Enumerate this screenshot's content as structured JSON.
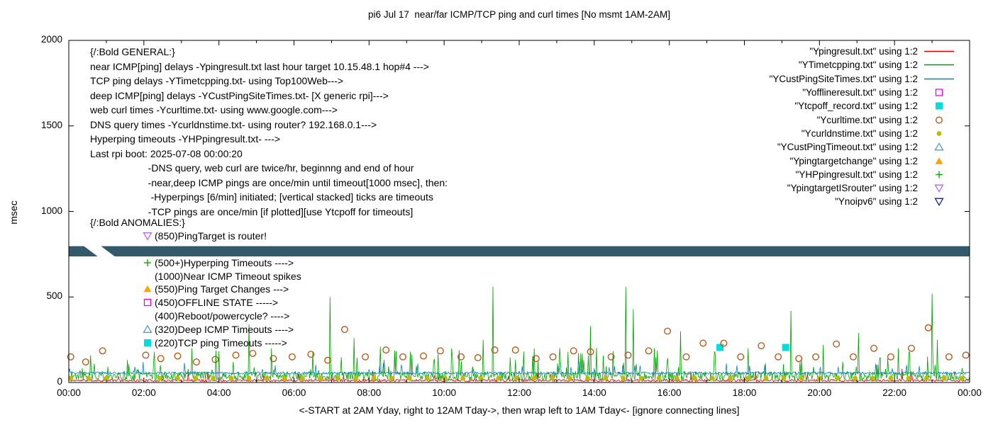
{
  "chart_data": {
    "type": "line",
    "title": "pi6 Jul 17  near/far ICMP/TCP ping and curl times [No msmt 1AM-2AM]",
    "ylabel": "msec",
    "xlabel": "<-START at 2AM Yday, right to 12AM Tday->, then wrap left to 1AM Tday<- [ignore connecting lines]",
    "xlim": [
      0,
      24
    ],
    "ylim": [
      0,
      2000
    ],
    "ytick_values": [
      0,
      500,
      1000,
      1500,
      2000
    ],
    "xtick_hours": [
      0,
      2,
      4,
      6,
      8,
      10,
      12,
      14,
      16,
      18,
      20,
      22,
      24
    ],
    "xtick_labels": [
      "00:00",
      "02:00",
      "04:00",
      "06:00",
      "08:00",
      "10:00",
      "12:00",
      "14:00",
      "16:00",
      "18:00",
      "20:00",
      "22:00",
      "00:00"
    ],
    "no_measurement_gap_hours": [
      1,
      2
    ],
    "band": {
      "color": "#33596b",
      "y_from_msec": 737,
      "y_to_msec": 797
    },
    "series": [
      {
        "name": "Ypingresult",
        "legend_label": "\"Ypingresult.txt\" using 1:2",
        "style": "line",
        "color": "#e00000",
        "base_msec": 12,
        "jitter_msec": 7,
        "burst_prob": 0.02,
        "burst_max": 50,
        "seed": 11,
        "spikes": [
          [
            3.2,
            60
          ],
          [
            8.1,
            70
          ],
          [
            12.5,
            55
          ],
          [
            18.3,
            65
          ],
          [
            22.2,
            80
          ]
        ]
      },
      {
        "name": "YTimetcpping",
        "legend_label": "\"YTimetcpping.txt\" using 1:2",
        "style": "line",
        "color": "#00a000",
        "base_msec": 38,
        "jitter_msec": 26,
        "burst_prob": 0.07,
        "burst_max": 150,
        "seed": 22,
        "spikes": [
          [
            0.6,
            160
          ],
          [
            2.3,
            180
          ],
          [
            3.3,
            200
          ],
          [
            4.8,
            340
          ],
          [
            5.4,
            200
          ],
          [
            6.5,
            180
          ],
          [
            6.97,
            500
          ],
          [
            7.6,
            260
          ],
          [
            8.3,
            210
          ],
          [
            9.1,
            180
          ],
          [
            10.2,
            200
          ],
          [
            11.05,
            250
          ],
          [
            11.3,
            560
          ],
          [
            12.4,
            200
          ],
          [
            13.3,
            180
          ],
          [
            13.9,
            330
          ],
          [
            14.85,
            560
          ],
          [
            15.05,
            430
          ],
          [
            15.6,
            200
          ],
          [
            16.3,
            300
          ],
          [
            17.2,
            180
          ],
          [
            18.1,
            200
          ],
          [
            19.25,
            420
          ],
          [
            20.1,
            220
          ],
          [
            21.05,
            290
          ],
          [
            22.1,
            200
          ],
          [
            23.0,
            520
          ],
          [
            23.15,
            250
          ]
        ]
      },
      {
        "name": "YCustPingSiteTimes",
        "legend_label": "\"YCustPingSiteTimes.txt\" using 1:2",
        "style": "line",
        "color": "#0082c8",
        "base_msec": 55,
        "jitter_msec": 7,
        "burst_prob": 0.03,
        "burst_max": 55,
        "seed": 33,
        "spikes": [
          [
            2.0,
            120
          ],
          [
            5.5,
            100
          ],
          [
            9.3,
            110
          ],
          [
            13.6,
            120
          ],
          [
            17.8,
            100
          ],
          [
            21.5,
            110
          ]
        ]
      },
      {
        "name": "Yofflineresult",
        "legend_label": "\"Yofflineresult.txt\" using 1:2",
        "style": "square-open",
        "color": "#f000f0",
        "points": []
      },
      {
        "name": "Ytcpoff_record",
        "legend_label": "\"Ytcpoff_record.txt\" using 1:2",
        "style": "square-filled",
        "color": "#00dede",
        "points": [
          [
            17.35,
            205
          ],
          [
            19.1,
            205
          ]
        ]
      },
      {
        "name": "Ycurltime",
        "legend_label": "\"Ycurltime.txt\" using 1:2",
        "style": "circle-open",
        "color": "#b8500c",
        "points": [
          [
            0.05,
            150
          ],
          [
            0.45,
            120
          ],
          [
            0.9,
            185
          ],
          [
            2.05,
            160
          ],
          [
            2.45,
            140
          ],
          [
            2.9,
            155
          ],
          [
            3.4,
            120
          ],
          [
            3.9,
            135
          ],
          [
            4.45,
            160
          ],
          [
            4.9,
            170
          ],
          [
            5.45,
            140
          ],
          [
            5.95,
            150
          ],
          [
            6.45,
            165
          ],
          [
            6.9,
            130
          ],
          [
            7.35,
            310
          ],
          [
            7.9,
            150
          ],
          [
            8.45,
            190
          ],
          [
            8.9,
            150
          ],
          [
            9.45,
            155
          ],
          [
            9.9,
            185
          ],
          [
            10.45,
            150
          ],
          [
            10.9,
            145
          ],
          [
            11.35,
            190
          ],
          [
            11.9,
            190
          ],
          [
            12.45,
            140
          ],
          [
            12.9,
            150
          ],
          [
            13.45,
            185
          ],
          [
            13.9,
            180
          ],
          [
            14.45,
            150
          ],
          [
            14.9,
            160
          ],
          [
            15.45,
            185
          ],
          [
            15.95,
            300
          ],
          [
            16.45,
            150
          ],
          [
            16.9,
            230
          ],
          [
            17.45,
            230
          ],
          [
            17.9,
            150
          ],
          [
            18.45,
            215
          ],
          [
            18.9,
            150
          ],
          [
            19.45,
            140
          ],
          [
            19.9,
            150
          ],
          [
            20.45,
            225
          ],
          [
            20.9,
            150
          ],
          [
            21.45,
            200
          ],
          [
            21.9,
            150
          ],
          [
            22.45,
            200
          ],
          [
            22.9,
            320
          ],
          [
            23.45,
            150
          ],
          [
            23.9,
            160
          ]
        ]
      },
      {
        "name": "Ycurldnstime",
        "legend_label": "\"Ycurldnstime.txt\" using 1:2",
        "style": "circle-filled",
        "color": "#bdbd00",
        "pattern": {
          "start": 0.05,
          "end": 24,
          "step": 0.475,
          "y": 25,
          "gap": [
            1,
            2
          ]
        }
      },
      {
        "name": "YCustPingTimeout",
        "legend_label": "\"YCustPingTimeout.txt\" using 1:2",
        "style": "tri-up-open",
        "color": "#4f9ecd",
        "points": []
      },
      {
        "name": "Ypingtargetchange",
        "legend_label": "\"Ypingtargetchange\" using 1:2",
        "style": "tri-up-filled",
        "color": "#ffa500",
        "points": []
      },
      {
        "name": "YHPpingresult",
        "legend_label": "\"YHPpingresult.txt\" using 1:2",
        "style": "plus",
        "color": "#00a000",
        "points": []
      },
      {
        "name": "YpingtargetISrouter",
        "legend_label": "\"YpingtargetISrouter\" using 1:2",
        "style": "tri-down-open",
        "color": "#b666e6",
        "points": []
      },
      {
        "name": "Ynoipv6",
        "legend_label": "\"Ynoipv6\" using 1:2",
        "style": "tri-down-open",
        "color": "#141e96",
        "points": []
      }
    ]
  },
  "annotations": {
    "general": {
      "lines": [
        "{/:Bold GENERAL:}",
        "near ICMP[ping] delays -Ypingresult.txt last hour target 10.15.48.1 hop#4 --->",
        "TCP ping delays -YTimetcpping.txt- using Top100Web--->",
        "deep ICMP[ping] delays -YCustPingSiteTimes.txt- [X generic rpi]--->",
        "web curl times -Ycurltime.txt- using www.google.com--->",
        "DNS query times -Ycurldnstime.txt- using router? 192.168.0.1--->",
        "Hyperping timeouts -YHPpingresult.txt- --->",
        "Last rpi boot: 2025-07-08 00:00:20",
        "                     -DNS query, web curl are twice/hr, beginnng and end of hour",
        "                     -near,deep ICMP pings are once/min until timeout[1000 msec], then:",
        "                      -Hyperpings [6/min] initiated; [vertical stacked] ticks are timeouts",
        "                     -TCP pings are once/min [if plotted][use Ytcpoff for timeouts]"
      ]
    },
    "anomalies": {
      "header": "{/:Bold ANOMALIES:}",
      "rows": [
        {
          "marker_style": "tri-down-open",
          "marker_color": "#b666e6",
          "text": "(850)PingTarget is router!"
        },
        {
          "marker_style": "none",
          "marker_color": "",
          "text": ""
        },
        {
          "marker_style": "plus",
          "marker_color": "#00a000",
          "text": "(500+)Hyperping Timeouts ---->"
        },
        {
          "marker_style": "none",
          "marker_color": "",
          "text": "(1000)Near ICMP Timeout spikes"
        },
        {
          "marker_style": "tri-up-filled",
          "marker_color": "#ffa500",
          "text": "(550)Ping Target Changes --->"
        },
        {
          "marker_style": "square-open",
          "marker_color": "#f000f0",
          "text": "(450)OFFLINE STATE ----->"
        },
        {
          "marker_style": "none",
          "marker_color": "",
          "text": "(400)Reboot/powercycle? ---->"
        },
        {
          "marker_style": "tri-up-open",
          "marker_color": "#4f9ecd",
          "text": "(320)Deep ICMP Timeouts ---->"
        },
        {
          "marker_style": "square-filled",
          "marker_color": "#00dede",
          "text": "(220)TCP ping Timeouts ----->"
        }
      ]
    }
  }
}
